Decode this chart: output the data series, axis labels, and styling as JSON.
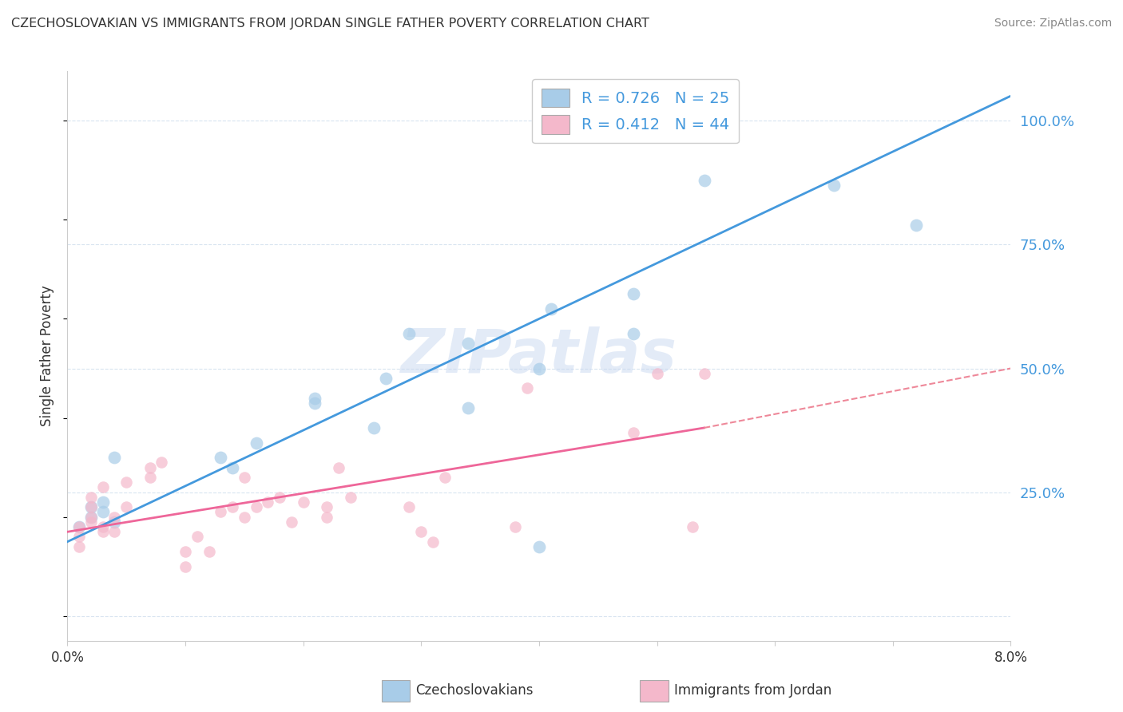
{
  "title": "CZECHOSLOVAKIAN VS IMMIGRANTS FROM JORDAN SINGLE FATHER POVERTY CORRELATION CHART",
  "source": "Source: ZipAtlas.com",
  "ylabel": "Single Father Poverty",
  "y_ticks": [
    0.0,
    0.25,
    0.5,
    0.75,
    1.0
  ],
  "y_tick_labels": [
    "",
    "25.0%",
    "50.0%",
    "75.0%",
    "100.0%"
  ],
  "x_range": [
    0.0,
    0.08
  ],
  "y_range": [
    -0.05,
    1.1
  ],
  "legend_blue_text": "R = 0.726   N = 25",
  "legend_pink_text": "R = 0.412   N = 44",
  "legend_label_blue": "Czechoslovakians",
  "legend_label_pink": "Immigrants from Jordan",
  "blue_scatter_x": [
    0.001,
    0.002,
    0.002,
    0.003,
    0.003,
    0.004,
    0.004,
    0.013,
    0.014,
    0.016,
    0.021,
    0.021,
    0.026,
    0.027,
    0.029,
    0.034,
    0.034,
    0.04,
    0.04,
    0.041,
    0.048,
    0.048,
    0.054,
    0.065,
    0.072
  ],
  "blue_scatter_y": [
    0.18,
    0.2,
    0.22,
    0.21,
    0.23,
    0.19,
    0.32,
    0.32,
    0.3,
    0.35,
    0.43,
    0.44,
    0.38,
    0.48,
    0.57,
    0.55,
    0.42,
    0.5,
    0.14,
    0.62,
    0.65,
    0.57,
    0.88,
    0.87,
    0.79
  ],
  "blue_line_x": [
    0.0,
    0.08
  ],
  "blue_line_y": [
    0.15,
    1.05
  ],
  "pink_scatter_x": [
    0.001,
    0.001,
    0.001,
    0.002,
    0.002,
    0.002,
    0.002,
    0.003,
    0.003,
    0.003,
    0.004,
    0.004,
    0.005,
    0.005,
    0.007,
    0.007,
    0.008,
    0.01,
    0.01,
    0.011,
    0.012,
    0.013,
    0.014,
    0.015,
    0.015,
    0.016,
    0.017,
    0.018,
    0.019,
    0.02,
    0.022,
    0.022,
    0.023,
    0.024,
    0.029,
    0.03,
    0.031,
    0.032,
    0.038,
    0.039,
    0.048,
    0.05,
    0.053,
    0.054
  ],
  "pink_scatter_y": [
    0.18,
    0.16,
    0.14,
    0.19,
    0.2,
    0.22,
    0.24,
    0.17,
    0.18,
    0.26,
    0.17,
    0.2,
    0.22,
    0.27,
    0.28,
    0.3,
    0.31,
    0.1,
    0.13,
    0.16,
    0.13,
    0.21,
    0.22,
    0.2,
    0.28,
    0.22,
    0.23,
    0.24,
    0.19,
    0.23,
    0.2,
    0.22,
    0.3,
    0.24,
    0.22,
    0.17,
    0.15,
    0.28,
    0.18,
    0.46,
    0.37,
    0.49,
    0.18,
    0.49
  ],
  "pink_line_x": [
    0.0,
    0.054
  ],
  "pink_line_y": [
    0.17,
    0.38
  ],
  "pink_dash_line_x": [
    0.054,
    0.08
  ],
  "pink_dash_line_y": [
    0.38,
    0.5
  ],
  "watermark": "ZIPatlas",
  "blue_color": "#a8cce8",
  "pink_color": "#f4b8cb",
  "blue_line_color": "#4499dd",
  "pink_line_color": "#ee6699",
  "pink_dash_color": "#ee8899",
  "axis_label_color": "#4499dd",
  "grid_color": "#d8e4f0",
  "background_color": "#ffffff",
  "spine_color": "#cccccc",
  "text_color": "#333333"
}
